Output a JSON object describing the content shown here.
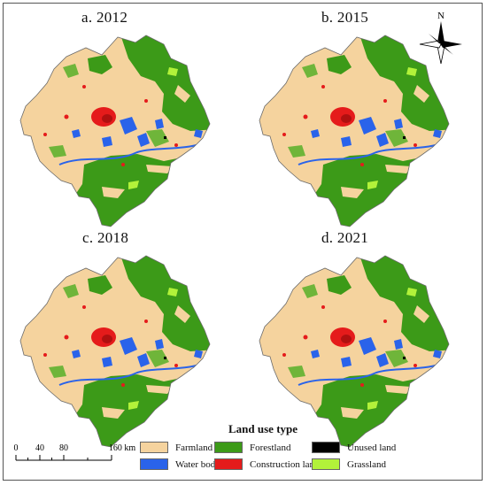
{
  "panels": [
    {
      "label": "a. 2012"
    },
    {
      "label": "b. 2015"
    },
    {
      "label": "c. 2018"
    },
    {
      "label": "d. 2021"
    }
  ],
  "north_arrow": {
    "label": "N",
    "icon": "compass-rose-icon"
  },
  "legend": {
    "title": "Land use type",
    "items": [
      {
        "label": "Farmland",
        "color": "#f5d39e"
      },
      {
        "label": "Forestland",
        "color": "#3c9a18"
      },
      {
        "label": "Unused land",
        "color": "#000000"
      },
      {
        "label": "Water body",
        "color": "#2a63ea"
      },
      {
        "label": "Construction land",
        "color": "#e51b1b"
      },
      {
        "label": "Grassland",
        "color": "#b2f23a"
      }
    ]
  },
  "scale_bar": {
    "ticks": [
      "0",
      "40",
      "80",
      "160 km"
    ]
  }
}
